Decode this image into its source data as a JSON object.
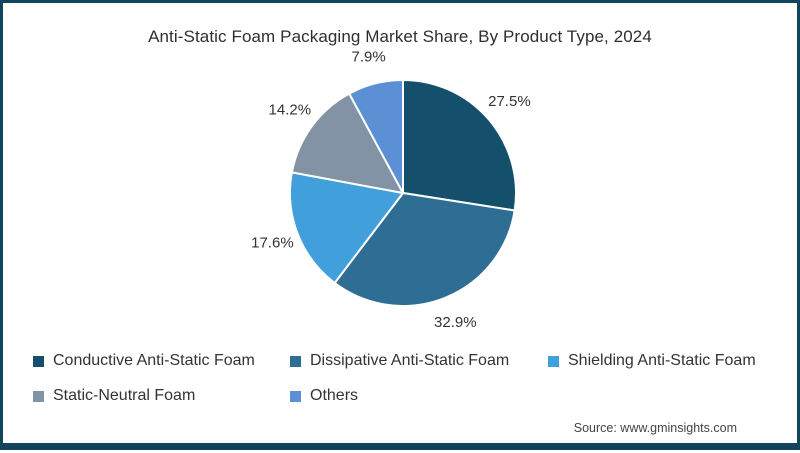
{
  "title": "Anti-Static Foam Packaging Market Share, By Product Type, 2024",
  "source": "Source: www.gminsights.com",
  "colors": {
    "frame_border": "#12455C",
    "slice_divider": "#ffffff",
    "label_text": "#333333"
  },
  "chart_data": {
    "type": "pie",
    "title": "Anti-Static Foam Packaging Market Share, By Product Type, 2024",
    "unit": "%",
    "direction": "clockwise",
    "start_angle": "12 o'clock",
    "legend_position": "bottom",
    "data_labels": "outside, percent",
    "slices": [
      {
        "label": "Conductive Anti-Static Foam",
        "value": 27.5,
        "display": "27.5%",
        "color": "#14506C"
      },
      {
        "label": "Dissipative Anti-Static Foam",
        "value": 32.9,
        "display": "32.9%",
        "color": "#2E6E94"
      },
      {
        "label": "Shielding Anti-Static Foam",
        "value": 17.6,
        "display": "17.6%",
        "color": "#41A0DC"
      },
      {
        "label": "Static-Neutral Foam",
        "value": 14.2,
        "display": "14.2%",
        "color": "#8193A4"
      },
      {
        "label": "Others",
        "value": 7.9,
        "display": "7.9%",
        "color": "#5B90D5"
      }
    ]
  }
}
